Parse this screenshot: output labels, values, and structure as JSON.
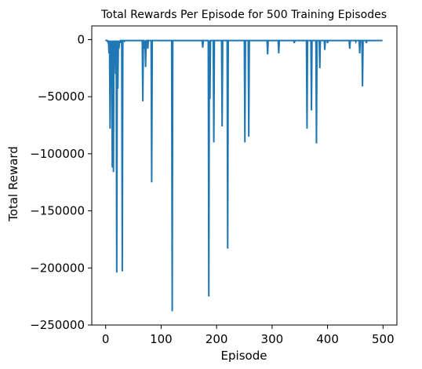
{
  "chart_data": {
    "type": "line",
    "title": "Total Rewards Per Episode for 500 Training Episodes",
    "xlabel": "Episode",
    "ylabel": "Total Reward",
    "xlim": [
      -25,
      525
    ],
    "ylim": [
      -250000,
      12000
    ],
    "x_ticks": [
      0,
      100,
      200,
      300,
      400,
      500
    ],
    "y_ticks": [
      0,
      -50000,
      -100000,
      -150000,
      -200000,
      -250000
    ],
    "x_tick_labels": [
      "0",
      "100",
      "200",
      "300",
      "400",
      "500"
    ],
    "y_tick_labels": [
      "0",
      "−50000",
      "−100000",
      "−150000",
      "−200000",
      "−250000"
    ],
    "grid": false,
    "series": [
      {
        "color": "#1f77b4",
        "baseline": -800,
        "spikes": [
          [
            4,
            -2000
          ],
          [
            6,
            -12000
          ],
          [
            8,
            -78000
          ],
          [
            10,
            -25000
          ],
          [
            12,
            -112000
          ],
          [
            14,
            -116000
          ],
          [
            16,
            -5000
          ],
          [
            18,
            -30000
          ],
          [
            20,
            -204000
          ],
          [
            22,
            -43000
          ],
          [
            24,
            -8000
          ],
          [
            26,
            -3000
          ],
          [
            30,
            -203000
          ],
          [
            34,
            -1500
          ],
          [
            67,
            -54000
          ],
          [
            70,
            -8000
          ],
          [
            72,
            -24000
          ],
          [
            76,
            -8000
          ],
          [
            83,
            -125000
          ],
          [
            120,
            -238000
          ],
          [
            175,
            -7000
          ],
          [
            186,
            -225000
          ],
          [
            188,
            -52000
          ],
          [
            195,
            -90000
          ],
          [
            210,
            -76000
          ],
          [
            220,
            -183000
          ],
          [
            251,
            -90000
          ],
          [
            258,
            -85000
          ],
          [
            292,
            -13000
          ],
          [
            312,
            -12000
          ],
          [
            340,
            -3000
          ],
          [
            363,
            -78000
          ],
          [
            371,
            -62000
          ],
          [
            380,
            -91000
          ],
          [
            386,
            -25000
          ],
          [
            395,
            -9000
          ],
          [
            400,
            -3000
          ],
          [
            440,
            -8000
          ],
          [
            451,
            -2000
          ],
          [
            458,
            -12000
          ],
          [
            463,
            -41000
          ],
          [
            470,
            -3000
          ]
        ]
      }
    ]
  }
}
